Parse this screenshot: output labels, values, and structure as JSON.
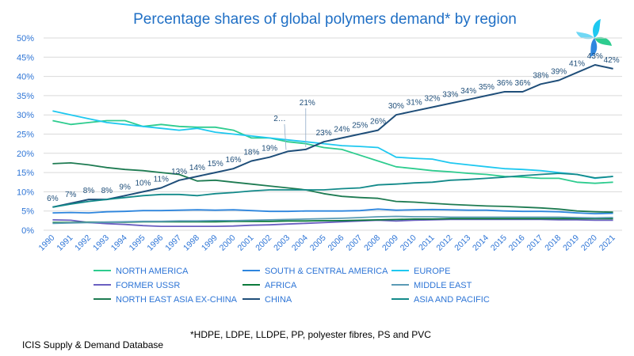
{
  "chart_data": {
    "type": "line",
    "title": "Percentage shares of global polymers demand* by region",
    "x": [
      "1990",
      "1991",
      "1992",
      "1993",
      "1994",
      "1995",
      "1996",
      "1997",
      "1998",
      "1999",
      "2000",
      "2001",
      "2002",
      "2003",
      "2004",
      "2005",
      "2006",
      "2007",
      "2008",
      "2009",
      "2010",
      "2011",
      "2012",
      "2013",
      "2014",
      "2015",
      "2016",
      "2017",
      "2018",
      "2019",
      "2020",
      "2021"
    ],
    "y_ticks": [
      "0%",
      "5%",
      "10%",
      "15%",
      "20%",
      "25%",
      "30%",
      "35%",
      "40%",
      "45%",
      "50%"
    ],
    "ylim": [
      0,
      50
    ],
    "grid": "horizontal",
    "legend_position": "bottom",
    "series": [
      {
        "name": "NORTH AMERICA",
        "color": "#2ecc8f",
        "values": [
          28.5,
          27.5,
          28.0,
          28.5,
          28.5,
          27.0,
          27.5,
          27.0,
          26.8,
          26.8,
          26.0,
          24.0,
          24.0,
          23.0,
          22.5,
          21.5,
          21.0,
          19.5,
          18.0,
          16.5,
          16.0,
          15.5,
          15.2,
          14.8,
          14.5,
          14.0,
          13.8,
          13.5,
          13.5,
          12.5,
          12.2,
          12.5
        ]
      },
      {
        "name": "SOUTH & CENTRAL AMERICA",
        "color": "#2e86de",
        "values": [
          4.5,
          4.6,
          4.5,
          4.8,
          4.9,
          5.1,
          5.1,
          5.2,
          5.3,
          5.2,
          5.3,
          5.1,
          4.9,
          4.9,
          5.0,
          5.0,
          5.0,
          5.1,
          5.5,
          5.2,
          5.3,
          5.4,
          5.3,
          5.2,
          5.2,
          5.0,
          4.9,
          4.9,
          4.8,
          4.5,
          4.3,
          4.4
        ]
      },
      {
        "name": "EUROPE",
        "color": "#1ec8f0",
        "values": [
          31.0,
          30.0,
          29.0,
          28.0,
          27.5,
          27.0,
          26.5,
          26.0,
          26.5,
          25.5,
          25.0,
          24.5,
          24.0,
          23.5,
          23.0,
          22.5,
          22.0,
          21.8,
          21.5,
          19.0,
          18.7,
          18.5,
          17.5,
          17.0,
          16.5,
          16.0,
          15.8,
          15.5,
          15.0,
          14.5,
          13.5,
          14.0
        ]
      },
      {
        "name": "FORMER USSR",
        "color": "#6a5fc1",
        "values": [
          2.7,
          2.6,
          2.0,
          1.7,
          1.5,
          1.2,
          1.0,
          1.0,
          1.0,
          1.0,
          1.1,
          1.3,
          1.4,
          1.6,
          1.8,
          2.0,
          2.2,
          2.4,
          2.6,
          2.4,
          2.6,
          2.7,
          2.8,
          2.8,
          2.8,
          2.8,
          2.8,
          2.8,
          2.7,
          2.7,
          2.6,
          2.6
        ]
      },
      {
        "name": "AFRICA",
        "color": "#0b7a3b",
        "values": [
          2.0,
          2.0,
          2.1,
          2.1,
          2.1,
          2.2,
          2.2,
          2.2,
          2.2,
          2.2,
          2.3,
          2.3,
          2.3,
          2.4,
          2.4,
          2.5,
          2.5,
          2.6,
          2.7,
          2.8,
          2.9,
          2.9,
          3.0,
          3.0,
          3.0,
          3.0,
          3.0,
          3.0,
          3.0,
          3.0,
          3.0,
          3.0
        ]
      },
      {
        "name": "MIDDLE EAST",
        "color": "#5b9bb5",
        "values": [
          1.8,
          1.9,
          2.0,
          2.1,
          2.2,
          2.3,
          2.3,
          2.4,
          2.4,
          2.5,
          2.5,
          2.6,
          2.7,
          2.8,
          2.9,
          3.0,
          3.1,
          3.3,
          3.5,
          3.6,
          3.5,
          3.5,
          3.4,
          3.4,
          3.4,
          3.4,
          3.4,
          3.4,
          3.4,
          3.3,
          3.2,
          3.3
        ]
      },
      {
        "name": "NORTH EAST ASIA EX-CHINA",
        "color": "#1e7b52",
        "values": [
          17.3,
          17.5,
          17.0,
          16.3,
          15.8,
          15.5,
          15.0,
          14.5,
          12.8,
          13.0,
          12.5,
          12.0,
          11.5,
          11.0,
          10.5,
          9.5,
          8.8,
          8.5,
          8.3,
          7.5,
          7.3,
          7.0,
          6.7,
          6.5,
          6.3,
          6.2,
          6.0,
          5.8,
          5.5,
          5.0,
          4.8,
          4.7
        ]
      },
      {
        "name": "CHINA",
        "color": "#1f4e79",
        "values": [
          6,
          7,
          8,
          8,
          9,
          10,
          11,
          13,
          14,
          15,
          16,
          18,
          19,
          20.5,
          21,
          23,
          24,
          25,
          26,
          30,
          31,
          32,
          33,
          34,
          35,
          36,
          36,
          38,
          39,
          41,
          43,
          42
        ],
        "labels": [
          "6%",
          "7%",
          "8%",
          "8%",
          "9%",
          "10%",
          "11%",
          "13%",
          "14%",
          "15%",
          "16%",
          "18%",
          "19%",
          "2…",
          "21%",
          "23%",
          "24%",
          "25%",
          "26%",
          "30%",
          "31%",
          "32%",
          "33%",
          "34%",
          "35%",
          "36%",
          "36%",
          "38%",
          "39%",
          "41%",
          "43%",
          "42%"
        ]
      },
      {
        "name": "ASIA AND PACIFIC",
        "color": "#138a8a",
        "values": [
          6.0,
          6.8,
          7.5,
          8.0,
          8.5,
          9.0,
          9.3,
          9.3,
          9.0,
          9.5,
          9.8,
          10.2,
          10.5,
          10.5,
          10.5,
          10.5,
          10.8,
          11.0,
          11.8,
          12.0,
          12.3,
          12.5,
          13.0,
          13.2,
          13.5,
          13.8,
          14.2,
          14.5,
          14.8,
          14.5,
          13.6,
          14.0
        ]
      }
    ]
  },
  "footer": {
    "source": "ICIS Supply & Demand Database",
    "note": "*HDPE, LDPE, LLDPE, PP, polyester fibres, PS and PVC"
  },
  "logo": {
    "icon": "pinwheel-logo-icon",
    "colors": [
      "#1ec8f0",
      "#2ecc8f",
      "#2e86de"
    ]
  }
}
